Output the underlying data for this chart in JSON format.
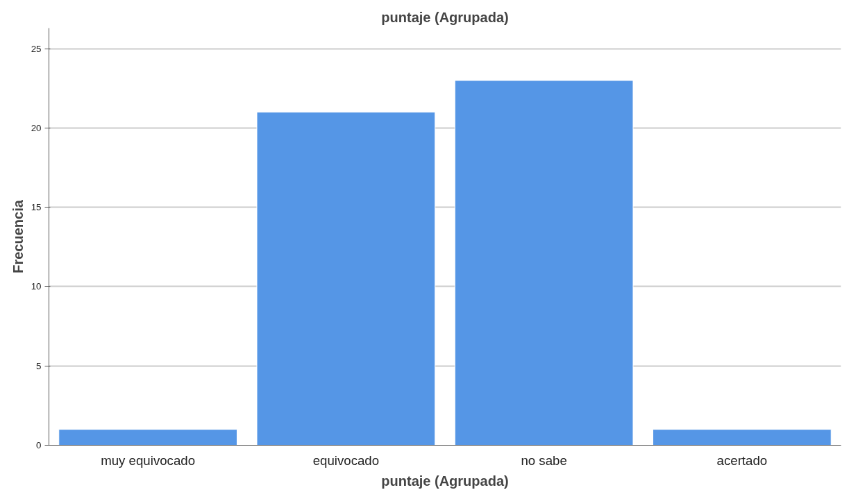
{
  "chart_data": {
    "type": "bar",
    "title": "puntaje (Agrupada)",
    "xlabel": "puntaje (Agrupada)",
    "ylabel": "Frecuencia",
    "categories": [
      "muy equivocado",
      "equivocado",
      "no sabe",
      "acertado"
    ],
    "values": [
      1,
      21,
      23,
      1
    ],
    "color": "#5596e6",
    "ylim": [
      0,
      26.3
    ],
    "yticks": [
      0,
      5,
      10,
      15,
      20,
      25
    ],
    "grid": "y"
  }
}
